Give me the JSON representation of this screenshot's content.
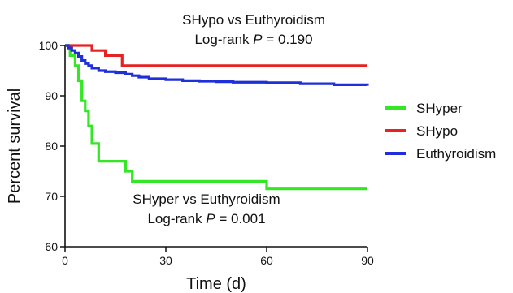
{
  "chart_data": {
    "type": "line",
    "xlabel": "Time (d)",
    "ylabel": "Percent survival",
    "xlim": [
      0,
      90
    ],
    "ylim": [
      60,
      100
    ],
    "x_ticks": [
      0,
      30,
      60,
      90
    ],
    "y_ticks": [
      60,
      70,
      80,
      90,
      100
    ],
    "grid": false,
    "legend_position": "right",
    "annotations": {
      "top_line1": "SHypo vs Euthyroidism",
      "top_line2_prefix": "Log-rank ",
      "top_line2_p": "P",
      "top_line2_suffix": " = 0.190",
      "bottom_line1": "SHyper vs Euthyroidism",
      "bottom_line2_prefix": "Log-rank ",
      "bottom_line2_p": "P",
      "bottom_line2_suffix": " = 0.001"
    },
    "series": [
      {
        "name": "SHyper",
        "color": "#33e626",
        "x": [
          0,
          1.5,
          3,
          4,
          5,
          6,
          7,
          8,
          10,
          18,
          20,
          60,
          90
        ],
        "y": [
          100,
          98,
          96,
          93,
          89,
          87,
          84,
          80.5,
          77,
          75,
          73,
          71.5,
          71.5
        ]
      },
      {
        "name": "SHypo",
        "color": "#e62222",
        "x": [
          0,
          6,
          8,
          10,
          12,
          17,
          90
        ],
        "y": [
          100,
          100,
          99,
          99,
          98,
          96,
          96
        ]
      },
      {
        "name": "Euthyroidism",
        "color": "#1f2fd9",
        "x": [
          0,
          1,
          2,
          3,
          4,
          5,
          6,
          7,
          8,
          10,
          12,
          15,
          18,
          20,
          22,
          25,
          30,
          35,
          40,
          45,
          50,
          60,
          70,
          80,
          90
        ],
        "y": [
          100,
          99.5,
          99,
          98.5,
          97.8,
          97,
          96.4,
          96,
          95.5,
          95,
          94.8,
          94.6,
          94.3,
          94,
          93.7,
          93.4,
          93.2,
          93,
          92.9,
          92.8,
          92.7,
          92.6,
          92.4,
          92.2,
          92
        ]
      }
    ]
  }
}
